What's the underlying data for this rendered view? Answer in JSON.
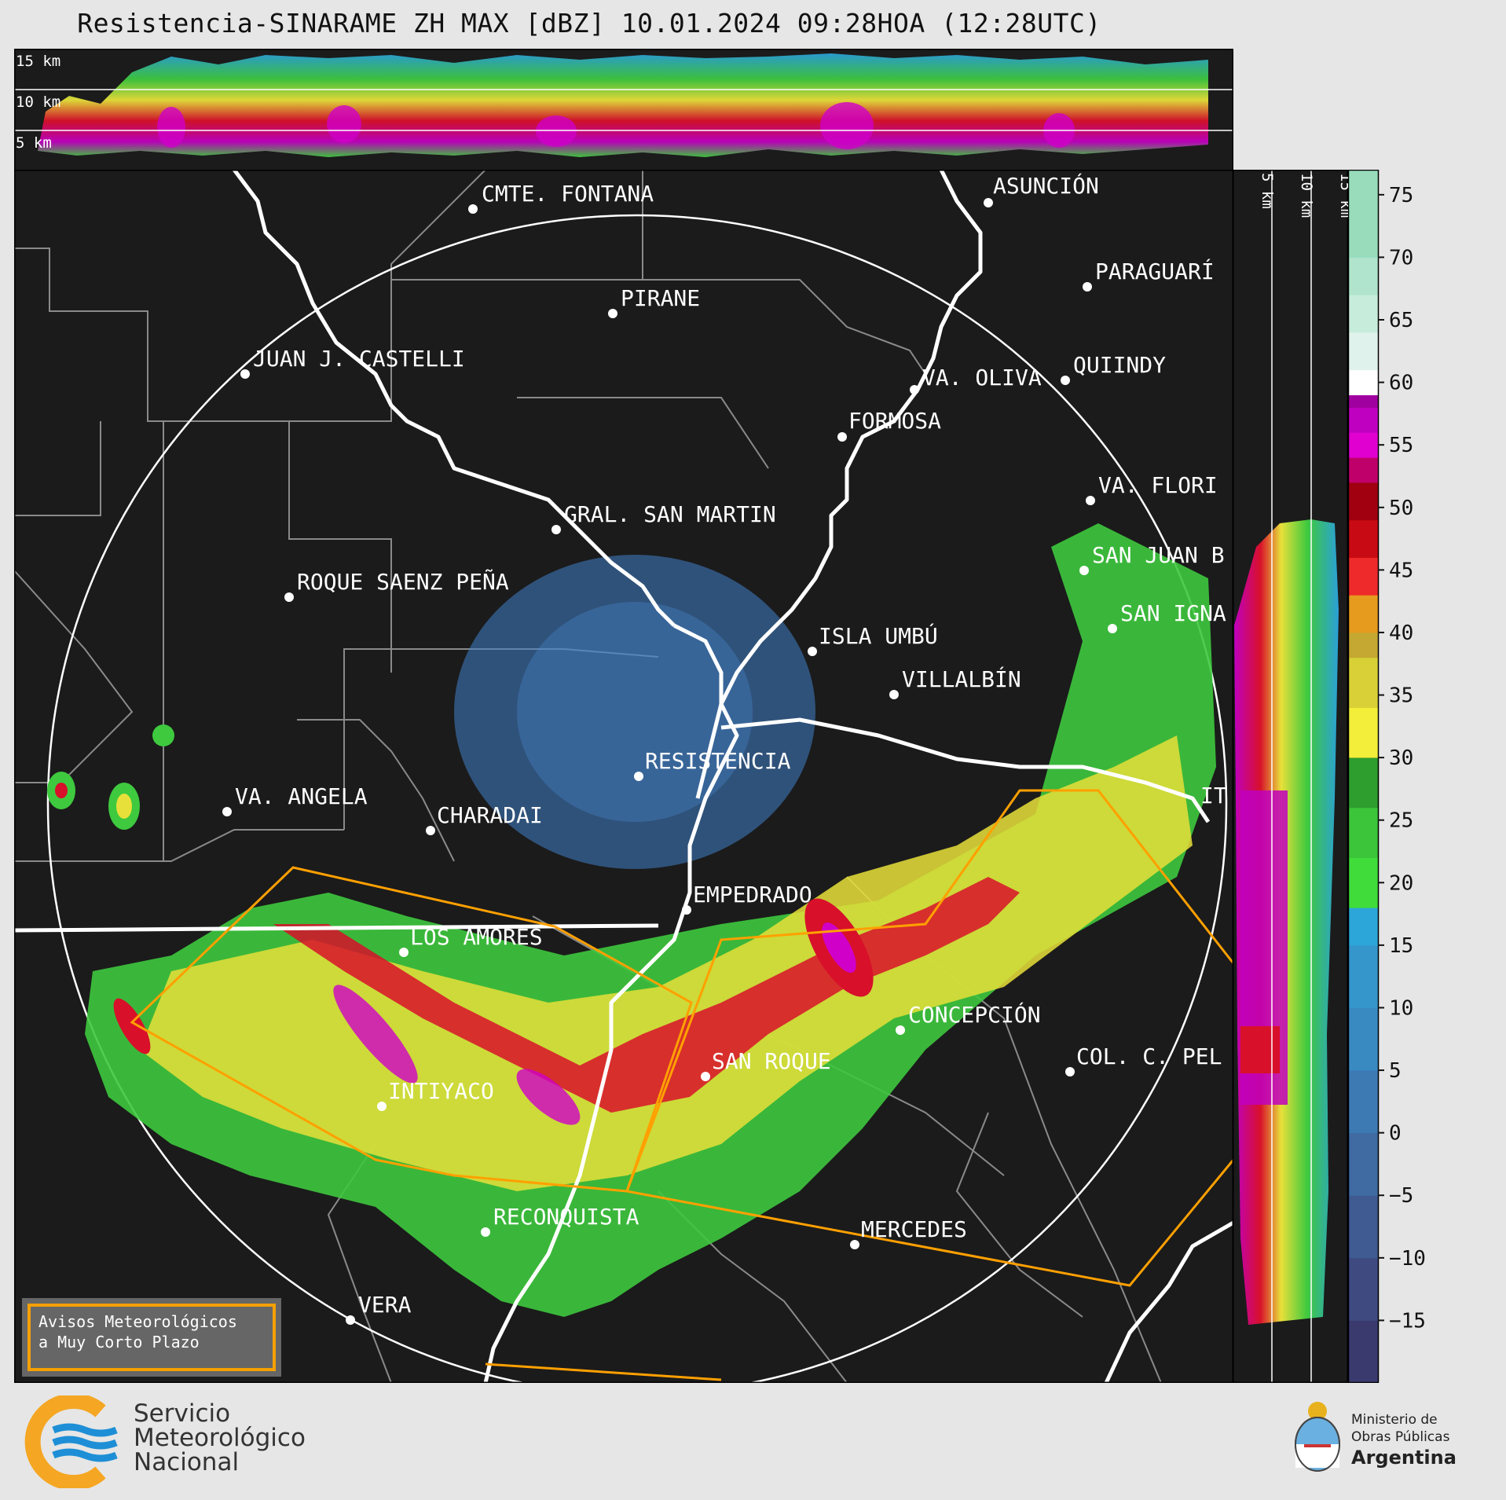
{
  "title": "Resistencia-SINARAME ZH MAX [dBZ] 10.01.2024 09:28HOA (12:28UTC)",
  "cross_section_labels": [
    "15 km",
    "10 km",
    "5 km"
  ],
  "side_section_labels": [
    "5 km",
    "10 km",
    "15 km"
  ],
  "colorbar": {
    "unit": "dBZ",
    "ticks": [
      "75",
      "70",
      "65",
      "60",
      "55",
      "50",
      "45",
      "40",
      "35",
      "30",
      "25",
      "20",
      "15",
      "10",
      "5",
      "0",
      "−5",
      "−10",
      "−15"
    ],
    "range": [
      -20,
      77
    ]
  },
  "places": [
    {
      "name": "CMTE. FONTANA"
    },
    {
      "name": "PIRANE"
    },
    {
      "name": "ASUNCIÓN"
    },
    {
      "name": "PARAGUARÍ"
    },
    {
      "name": "JUAN J. CASTELLI"
    },
    {
      "name": "VA. OLIVA"
    },
    {
      "name": "QUIINDY"
    },
    {
      "name": "FORMOSA"
    },
    {
      "name": "VA. FLORI"
    },
    {
      "name": "GRAL. SAN MARTIN"
    },
    {
      "name": "SAN JUAN B"
    },
    {
      "name": "ROQUE SAENZ PEÑA"
    },
    {
      "name": "SAN IGNA"
    },
    {
      "name": "ISLA UMBÚ"
    },
    {
      "name": "VILLALBÍN"
    },
    {
      "name": "RESISTENCIA"
    },
    {
      "name": "VA. ANGELA"
    },
    {
      "name": "CHARADAI"
    },
    {
      "name": "IT"
    },
    {
      "name": "EMPEDRADO"
    },
    {
      "name": "LOS AMORES"
    },
    {
      "name": "CONCEPCIÓN"
    },
    {
      "name": "SAN ROQUE"
    },
    {
      "name": "COL. C. PEL"
    },
    {
      "name": "INTIYACO"
    },
    {
      "name": "RECONQUISTA"
    },
    {
      "name": "MERCEDES"
    },
    {
      "name": "VERA"
    }
  ],
  "avisos": {
    "line1": "Avisos Meteorológicos",
    "line2": "a Muy Corto Plazo"
  },
  "smn": {
    "line1": "Servicio",
    "line2": "Meteorológico",
    "line3": "Nacional"
  },
  "ministerio": {
    "line1": "Ministerio de",
    "line2": "Obras Públicas",
    "line3": "Argentina"
  },
  "colors": {
    "background": "#1b1b1b",
    "warning_polygon": "#ffa000",
    "range_ring": "#ffffff",
    "smn_orange": "#f5a623",
    "smn_blue": "#1e8fd6"
  }
}
